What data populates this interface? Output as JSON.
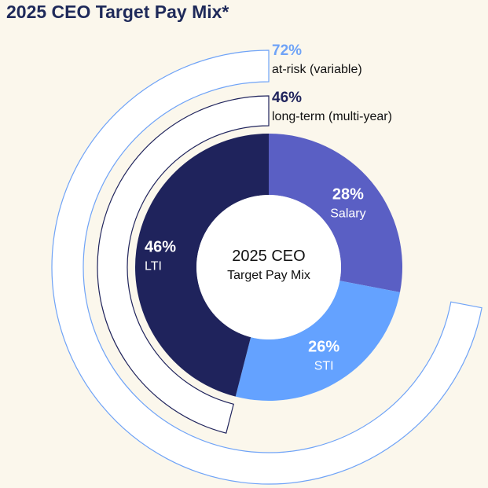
{
  "title": "2025 CEO Target Pay Mix*",
  "chart_data": {
    "type": "pie",
    "style": "donut",
    "center_label": [
      "2025 CEO",
      "Target Pay Mix"
    ],
    "slices": [
      {
        "label": "Salary",
        "value": 28,
        "display": "28%",
        "color": "#5A5FC4"
      },
      {
        "label": "STI",
        "value": 26,
        "display": "26%",
        "color": "#64A2FF"
      },
      {
        "label": "LTI",
        "value": 46,
        "display": "46%",
        "color": "#1F235C"
      }
    ],
    "bands": [
      {
        "value": 72,
        "display": "72%",
        "text": "at-risk (variable)",
        "color": "#6FA3F7"
      },
      {
        "value": 46,
        "display": "46%",
        "text": "long-term (multi-year)",
        "color": "#1F235C"
      }
    ]
  }
}
